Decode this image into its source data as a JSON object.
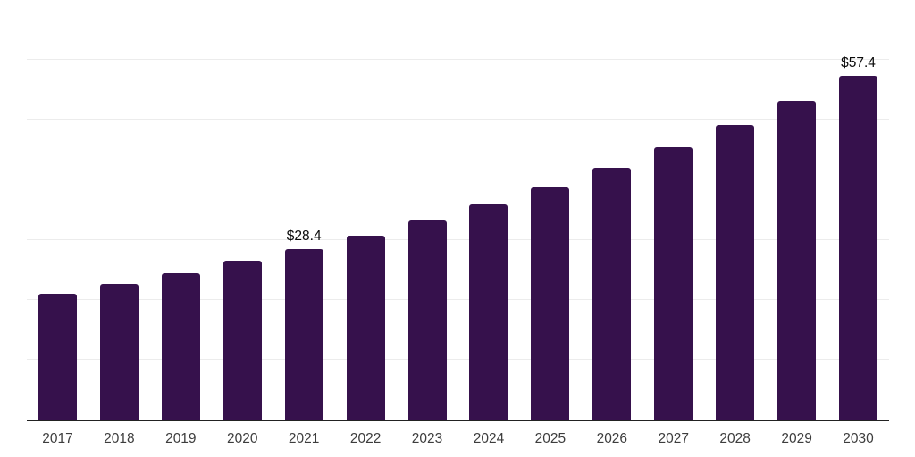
{
  "chart_data": {
    "type": "bar",
    "title": "",
    "categories": [
      "2017",
      "2018",
      "2019",
      "2020",
      "2021",
      "2022",
      "2023",
      "2024",
      "2025",
      "2026",
      "2027",
      "2028",
      "2029",
      "2030"
    ],
    "values": [
      21.0,
      22.7,
      24.5,
      26.5,
      28.4,
      30.7,
      33.2,
      35.9,
      38.8,
      42.0,
      45.4,
      49.1,
      53.1,
      57.4
    ],
    "annotations": [
      {
        "category": "2021",
        "text": "$28.4"
      },
      {
        "category": "2030",
        "text": "$57.4"
      }
    ],
    "xlabel": "",
    "ylabel": "",
    "ylim": [
      0,
      70
    ],
    "gridline_step": 10,
    "grid": true,
    "legend_position": "none",
    "y_axis_labels_visible": false,
    "colors": {
      "bar": "#36114C",
      "gridline": "#ececec",
      "axis_line": "#222222",
      "tick_label": "#3d3d3d",
      "value_label": "#0a0a0a",
      "background": "#ffffff"
    }
  }
}
